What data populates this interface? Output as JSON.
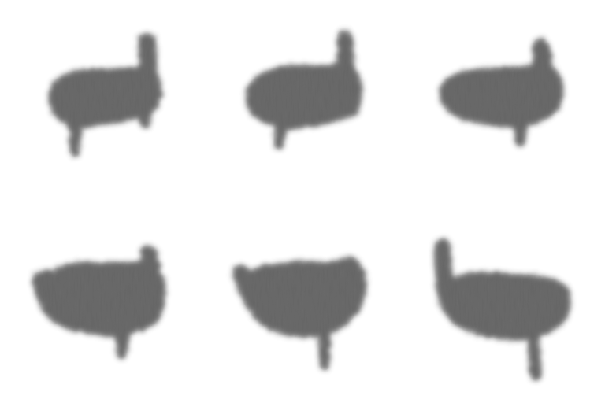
{
  "image": {
    "background": "#ffffff",
    "ink": "#5a5a5a",
    "figures": [
      {
        "id": "fig-1",
        "variant": "head-right-up-foot-left"
      },
      {
        "id": "fig-2",
        "variant": "head-right-up-foot-left"
      },
      {
        "id": "fig-3",
        "variant": "head-right-up-foot-right"
      },
      {
        "id": "fig-4",
        "variant": "head-right-up-foot-right"
      },
      {
        "id": "fig-5",
        "variant": "both-ends-up-foot-center"
      },
      {
        "id": "fig-6",
        "variant": "head-left-up-foot-right"
      }
    ]
  }
}
